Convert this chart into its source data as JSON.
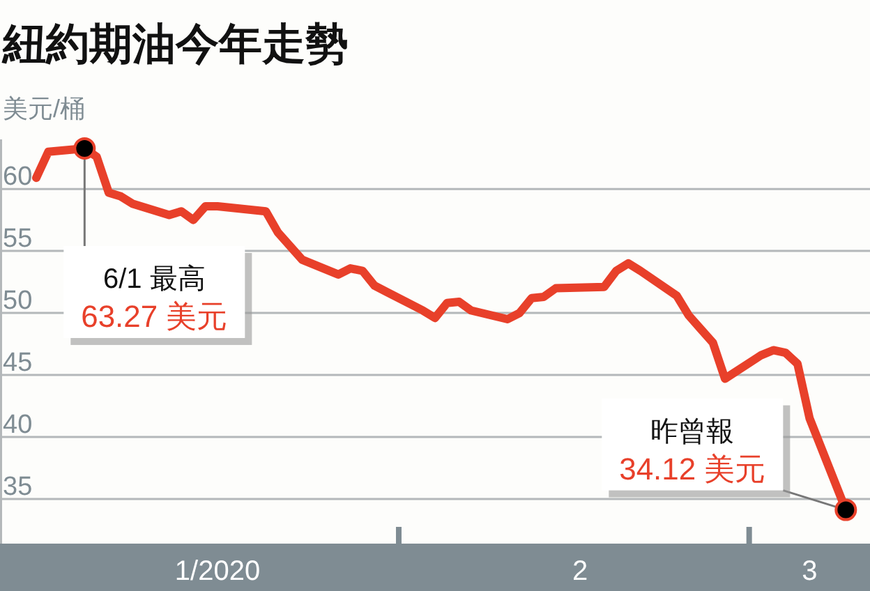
{
  "chart_data": {
    "type": "line",
    "title": "紐約期油今年走勢",
    "ylabel": "美元/桶",
    "x": [
      "2020-01-02",
      "2020-01-03",
      "2020-01-06",
      "2020-01-07",
      "2020-01-08",
      "2020-01-09",
      "2020-01-10",
      "2020-01-13",
      "2020-01-14",
      "2020-01-15",
      "2020-01-16",
      "2020-01-17",
      "2020-01-21",
      "2020-01-22",
      "2020-01-23",
      "2020-01-24",
      "2020-01-27",
      "2020-01-28",
      "2020-01-29",
      "2020-01-30",
      "2020-01-31",
      "2020-02-03",
      "2020-02-04",
      "2020-02-05",
      "2020-02-06",
      "2020-02-07",
      "2020-02-10",
      "2020-02-11",
      "2020-02-12",
      "2020-02-13",
      "2020-02-14",
      "2020-02-18",
      "2020-02-19",
      "2020-02-20",
      "2020-02-21",
      "2020-02-24",
      "2020-02-25",
      "2020-02-26",
      "2020-02-27",
      "2020-02-28",
      "2020-03-02",
      "2020-03-03",
      "2020-03-04",
      "2020-03-05",
      "2020-03-06",
      "2020-03-09"
    ],
    "series": [
      {
        "color": "#e8402a",
        "values": [
          60.9,
          63.0,
          63.27,
          62.6,
          59.7,
          59.4,
          58.8,
          57.9,
          58.2,
          57.5,
          58.6,
          58.6,
          58.2,
          56.5,
          55.4,
          54.3,
          53.1,
          53.6,
          53.4,
          52.2,
          51.7,
          50.2,
          49.6,
          50.8,
          50.9,
          50.2,
          49.5,
          50.0,
          51.2,
          51.3,
          52.0,
          52.1,
          53.4,
          54.0,
          53.4,
          51.4,
          49.8,
          48.7,
          47.6,
          44.7,
          46.6,
          47.0,
          46.8,
          45.9,
          41.5,
          34.12
        ]
      }
    ],
    "xlim": [
      "2019-12-30",
      "2020-03-11"
    ],
    "xticks": [
      {
        "value": "2020-01-17",
        "label": "1/2020"
      },
      {
        "value": "2020-02-01",
        "label": null
      },
      {
        "value": "2020-02-16",
        "label": "2"
      },
      {
        "value": "2020-03-01",
        "label": null
      },
      {
        "value": "2020-03-06",
        "label": "3"
      }
    ],
    "ylim": [
      31.4,
      64
    ],
    "yticks": [
      35,
      40,
      45,
      50,
      55,
      60
    ],
    "grid": "y",
    "marker": "none",
    "line_style": "solid",
    "annotations": [
      {
        "text": "6/1 最高\n63.27 美元",
        "x": "2020-01-06",
        "y": 63.27
      },
      {
        "text": "昨曾報\n34.12 美元",
        "x": "2020-03-09",
        "y": 34.12
      }
    ]
  }
}
